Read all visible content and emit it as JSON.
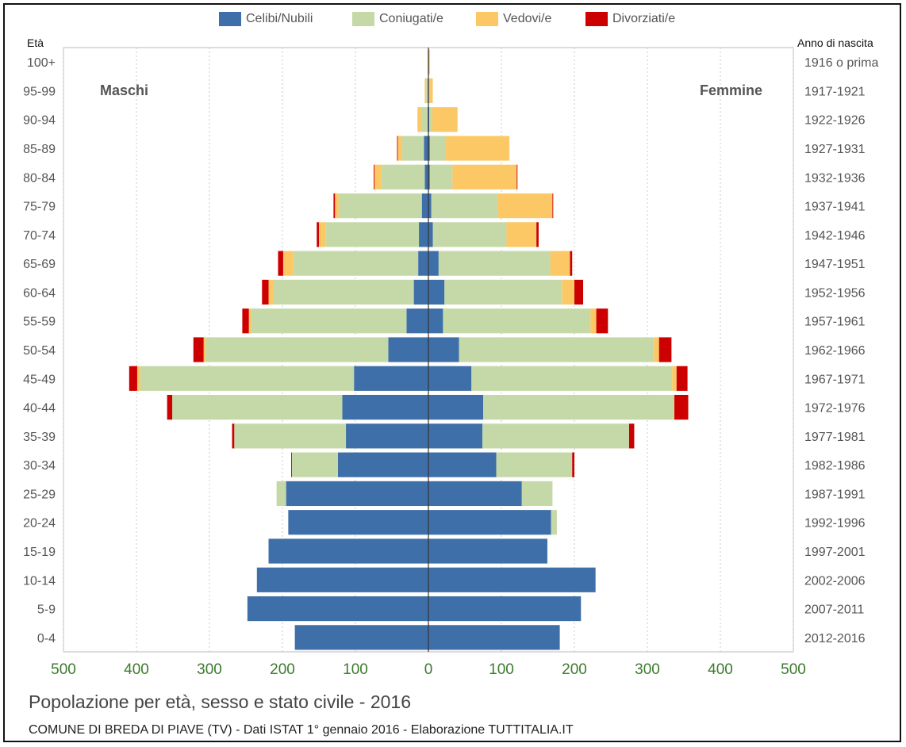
{
  "chart_data": {
    "type": "bar",
    "title": "Popolazione per età, sesso e stato civile - 2016",
    "subtitle": "COMUNE DI BREDA DI PIAVE (TV) - Dati ISTAT 1° gennaio 2016 - Elaborazione TUTTITALIA.IT",
    "left_axis_title": "Età",
    "right_axis_title": "Anno di nascita",
    "left_side_label": "Maschi",
    "right_side_label": "Femmine",
    "xlim": [
      -500,
      500
    ],
    "x_ticks": [
      "500",
      "400",
      "300",
      "200",
      "100",
      "0",
      "100",
      "200",
      "300",
      "400",
      "500"
    ],
    "categories": [
      "0-4",
      "5-9",
      "10-14",
      "15-19",
      "20-24",
      "25-29",
      "30-34",
      "35-39",
      "40-44",
      "45-49",
      "50-54",
      "55-59",
      "60-64",
      "65-69",
      "70-74",
      "75-79",
      "80-84",
      "85-89",
      "90-94",
      "95-99",
      "100+"
    ],
    "birth_years": [
      "2012-2016",
      "2007-2011",
      "2002-2006",
      "1997-2001",
      "1992-1996",
      "1987-1991",
      "1982-1986",
      "1977-1981",
      "1972-1976",
      "1967-1971",
      "1962-1966",
      "1957-1961",
      "1952-1956",
      "1947-1951",
      "1942-1946",
      "1937-1941",
      "1932-1936",
      "1927-1931",
      "1922-1926",
      "1917-1921",
      "1916 o prima"
    ],
    "legend": [
      "Celibi/Nubili",
      "Coniugati/e",
      "Vedovi/e",
      "Divorziati/e"
    ],
    "colors": [
      "#3f6fa8",
      "#c5d9a8",
      "#fcc865",
      "#cc0000"
    ],
    "series": [
      {
        "name": "Celibi/Nubili",
        "male": [
          183,
          248,
          235,
          219,
          192,
          195,
          124,
          113,
          118,
          102,
          55,
          30,
          20,
          14,
          13,
          9,
          5,
          6,
          1,
          1,
          0
        ],
        "female": [
          180,
          209,
          229,
          163,
          168,
          128,
          93,
          74,
          75,
          59,
          42,
          20,
          22,
          14,
          6,
          4,
          2,
          2,
          1,
          0,
          0
        ]
      },
      {
        "name": "Coniugati/e",
        "male": [
          0,
          0,
          0,
          0,
          0,
          13,
          63,
          153,
          233,
          293,
          250,
          213,
          193,
          171,
          128,
          114,
          60,
          30,
          9,
          2,
          0
        ],
        "female": [
          0,
          0,
          0,
          0,
          8,
          42,
          104,
          201,
          261,
          275,
          267,
          202,
          161,
          153,
          101,
          91,
          31,
          22,
          4,
          1,
          0
        ]
      },
      {
        "name": "Vedovi/e",
        "male": [
          0,
          0,
          0,
          0,
          0,
          0,
          0,
          0,
          0,
          4,
          3,
          3,
          6,
          14,
          9,
          5,
          9,
          6,
          5,
          2,
          1
        ],
        "female": [
          0,
          0,
          0,
          0,
          0,
          0,
          0,
          0,
          1,
          6,
          7,
          8,
          17,
          27,
          41,
          75,
          88,
          87,
          35,
          5,
          2
        ]
      },
      {
        "name": "Divorziati/e",
        "male": [
          0,
          0,
          0,
          0,
          0,
          0,
          1,
          3,
          7,
          11,
          14,
          9,
          9,
          7,
          3,
          2,
          1,
          1,
          0,
          0,
          0
        ],
        "female": [
          0,
          0,
          0,
          0,
          0,
          0,
          3,
          7,
          19,
          15,
          17,
          16,
          12,
          3,
          3,
          1,
          1,
          0,
          0,
          0,
          0
        ]
      }
    ]
  }
}
